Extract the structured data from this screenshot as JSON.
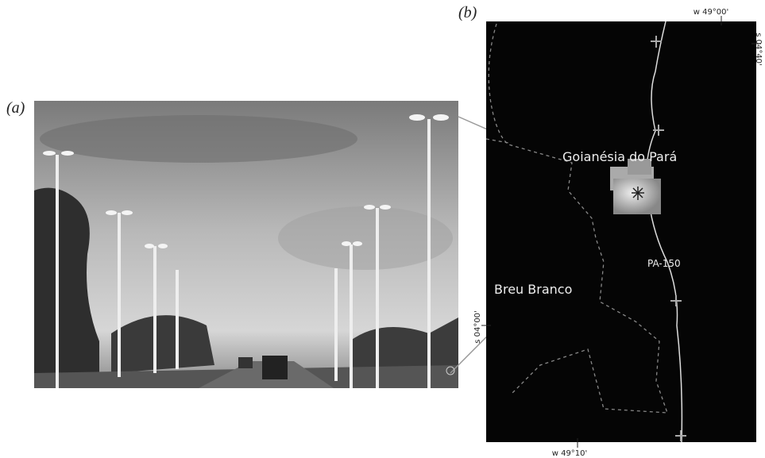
{
  "panels": {
    "a": {
      "label": "(a)"
    },
    "b": {
      "label": "(b)"
    }
  },
  "map": {
    "places": [
      "Goianésia do Pará",
      "Breu Branco"
    ],
    "road": "PA-150",
    "coords": {
      "top": "w 49°00'",
      "bottom": "w 49°10'",
      "left": "s 04°00'",
      "right": "s 04°40'"
    }
  }
}
